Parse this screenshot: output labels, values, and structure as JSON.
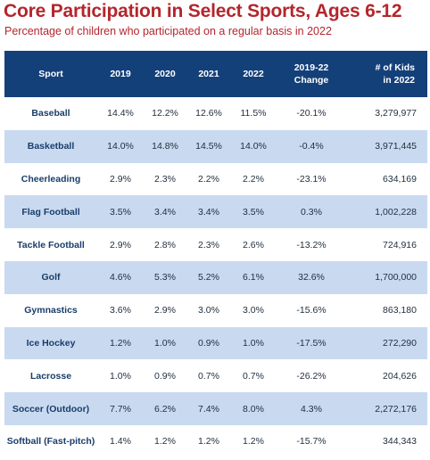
{
  "title": "Core Participation in Select Sports, Ages 6-12",
  "subtitle": "Percentage of children who participated on a regular basis in 2022",
  "headers": {
    "sport": "Sport",
    "y2019": "2019",
    "y2020": "2020",
    "y2021": "2021",
    "y2022": "2022",
    "change_line1": "2019-22",
    "change_line2": "Change",
    "kids_line1": "# of Kids",
    "kids_line2": "in 2022"
  },
  "colors": {
    "title": "#b3262d",
    "header_bg": "#14407a",
    "stripe": "#c9daf0",
    "sport_text": "#1a3d6b"
  },
  "chart_data": {
    "type": "table",
    "title": "Core Participation in Select Sports, Ages 6-12",
    "subtitle": "Percentage of children who participated on a regular basis in 2022",
    "columns": [
      "Sport",
      "2019",
      "2020",
      "2021",
      "2022",
      "2019-22 Change",
      "# of Kids in 2022"
    ],
    "rows": [
      {
        "sport": "Baseball",
        "y2019": "14.4%",
        "y2020": "12.2%",
        "y2021": "12.6%",
        "y2022": "11.5%",
        "change": "-20.1%",
        "kids": "3,279,977"
      },
      {
        "sport": "Basketball",
        "y2019": "14.0%",
        "y2020": "14.8%",
        "y2021": "14.5%",
        "y2022": "14.0%",
        "change": "-0.4%",
        "kids": "3,971,445"
      },
      {
        "sport": "Cheerleading",
        "y2019": "2.9%",
        "y2020": "2.3%",
        "y2021": "2.2%",
        "y2022": "2.2%",
        "change": "-23.1%",
        "kids": "634,169"
      },
      {
        "sport": "Flag Football",
        "y2019": "3.5%",
        "y2020": "3.4%",
        "y2021": "3.4%",
        "y2022": "3.5%",
        "change": "0.3%",
        "kids": "1,002,228"
      },
      {
        "sport": "Tackle Football",
        "y2019": "2.9%",
        "y2020": "2.8%",
        "y2021": "2.3%",
        "y2022": "2.6%",
        "change": "-13.2%",
        "kids": "724,916"
      },
      {
        "sport": "Golf",
        "y2019": "4.6%",
        "y2020": "5.3%",
        "y2021": "5.2%",
        "y2022": "6.1%",
        "change": "32.6%",
        "kids": "1,700,000"
      },
      {
        "sport": "Gymnastics",
        "y2019": "3.6%",
        "y2020": "2.9%",
        "y2021": "3.0%",
        "y2022": "3.0%",
        "change": "-15.6%",
        "kids": "863,180"
      },
      {
        "sport": "Ice Hockey",
        "y2019": "1.2%",
        "y2020": "1.0%",
        "y2021": "0.9%",
        "y2022": "1.0%",
        "change": "-17.5%",
        "kids": "272,290"
      },
      {
        "sport": "Lacrosse",
        "y2019": "1.0%",
        "y2020": "0.9%",
        "y2021": "0.7%",
        "y2022": "0.7%",
        "change": "-26.2%",
        "kids": "204,626"
      },
      {
        "sport": "Soccer (Outdoor)",
        "y2019": "7.7%",
        "y2020": "6.2%",
        "y2021": "7.4%",
        "y2022": "8.0%",
        "change": "4.3%",
        "kids": "2,272,176"
      },
      {
        "sport": "Softball (Fast-pitch)",
        "y2019": "1.4%",
        "y2020": "1.2%",
        "y2021": "1.2%",
        "y2022": "1.2%",
        "change": "-15.7%",
        "kids": "344,343"
      }
    ]
  }
}
